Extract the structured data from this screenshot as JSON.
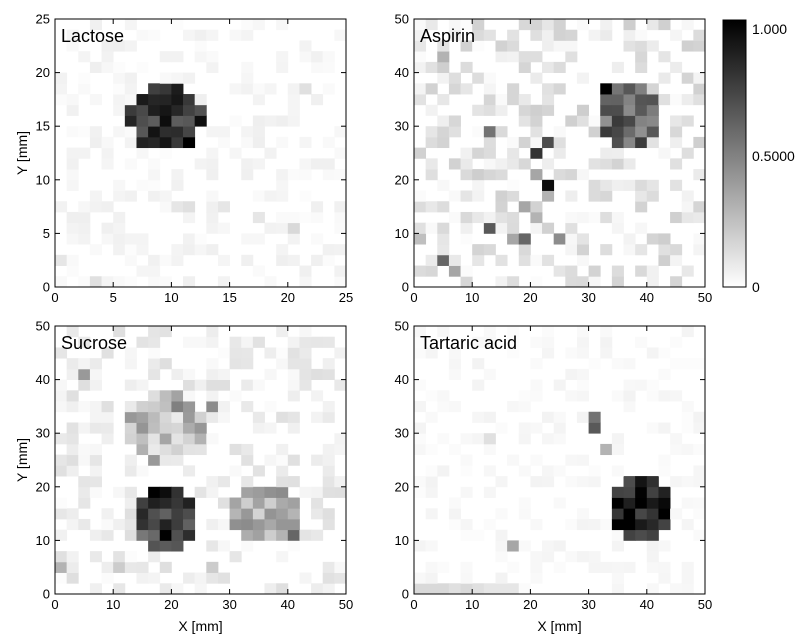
{
  "chart_data": [
    {
      "type": "heatmap",
      "title": "Lactose",
      "xlabel": "",
      "ylabel": "Y [mm]",
      "xlim": [
        0,
        25
      ],
      "ylim": [
        0,
        25
      ],
      "xticks": [
        0,
        5,
        10,
        15,
        20,
        25
      ],
      "yticks": [
        0,
        5,
        10,
        15,
        20,
        25
      ],
      "pixel_mm": 1,
      "background_noise": 0.04,
      "spots": [
        {
          "x": 9.5,
          "y": 15.8,
          "r": 3.2,
          "intensity": 0.78
        }
      ],
      "cells": [
        {
          "x": 11.5,
          "y": 13.5,
          "v": 1.0
        },
        {
          "x": 8.5,
          "y": 17.5,
          "v": 0.85
        },
        {
          "x": 9.5,
          "y": 14.5,
          "v": 0.82
        },
        {
          "x": 0.5,
          "y": 2.5,
          "v": 0.1
        },
        {
          "x": 3.5,
          "y": 0.5,
          "v": 0.12
        },
        {
          "x": 10.5,
          "y": 7.5,
          "v": 0.1
        },
        {
          "x": 11.5,
          "y": 7.5,
          "v": 0.12
        },
        {
          "x": 17.5,
          "y": 6.5,
          "v": 0.1
        },
        {
          "x": 20.5,
          "y": 5.5,
          "v": 0.15
        },
        {
          "x": 21.5,
          "y": 18.5,
          "v": 0.12
        },
        {
          "x": 14.5,
          "y": 7.5,
          "v": 0.1
        }
      ]
    },
    {
      "type": "heatmap",
      "title": "Aspirin",
      "xlabel": "",
      "ylabel": "",
      "xlim": [
        0,
        50
      ],
      "ylim": [
        0,
        50
      ],
      "xticks": [
        0,
        10,
        20,
        30,
        40,
        50
      ],
      "yticks": [
        0,
        10,
        20,
        30,
        40,
        50
      ],
      "pixel_mm": 2,
      "background_noise": 0.12,
      "spots": [
        {
          "x": 37,
          "y": 32,
          "r": 6,
          "intensity": 0.6
        }
      ],
      "cells": [
        {
          "x": 33,
          "y": 37,
          "v": 1.0
        },
        {
          "x": 23,
          "y": 19,
          "v": 0.95
        },
        {
          "x": 21,
          "y": 25,
          "v": 0.8
        },
        {
          "x": 23,
          "y": 27,
          "v": 0.7
        },
        {
          "x": 13,
          "y": 11,
          "v": 0.65
        },
        {
          "x": 5,
          "y": 5,
          "v": 0.6
        },
        {
          "x": 13,
          "y": 29,
          "v": 0.55
        },
        {
          "x": 19,
          "y": 9,
          "v": 0.6
        },
        {
          "x": 25,
          "y": 9,
          "v": 0.45
        },
        {
          "x": 5,
          "y": 43,
          "v": 0.3
        },
        {
          "x": 21,
          "y": 21,
          "v": 0.35
        },
        {
          "x": 19,
          "y": 15,
          "v": 0.35
        },
        {
          "x": 21,
          "y": 13,
          "v": 0.3
        },
        {
          "x": 17,
          "y": 9,
          "v": 0.35
        },
        {
          "x": 23,
          "y": 17,
          "v": 0.3
        },
        {
          "x": 7,
          "y": 3,
          "v": 0.35
        },
        {
          "x": 1,
          "y": 9,
          "v": 0.25
        }
      ]
    },
    {
      "type": "heatmap",
      "title": "Sucrose",
      "xlabel": "X [mm]",
      "ylabel": "Y [mm]",
      "xlim": [
        0,
        50
      ],
      "ylim": [
        0,
        50
      ],
      "xticks": [
        0,
        10,
        20,
        30,
        40,
        50
      ],
      "yticks": [
        0,
        10,
        20,
        30,
        40,
        50
      ],
      "pixel_mm": 2,
      "background_noise": 0.08,
      "spots": [
        {
          "x": 19,
          "y": 14.5,
          "r": 6,
          "intensity": 0.7
        },
        {
          "x": 19,
          "y": 31,
          "r": 6.5,
          "intensity": 0.25
        },
        {
          "x": 36,
          "y": 15,
          "r": 6,
          "intensity": 0.3
        }
      ],
      "cells": [
        {
          "x": 17,
          "y": 19,
          "v": 1.0
        },
        {
          "x": 19,
          "y": 19,
          "v": 0.95
        },
        {
          "x": 19,
          "y": 11,
          "v": 1.0
        },
        {
          "x": 15,
          "y": 17,
          "v": 0.75
        },
        {
          "x": 23,
          "y": 15,
          "v": 0.7
        },
        {
          "x": 41,
          "y": 11,
          "v": 0.6
        },
        {
          "x": 5,
          "y": 41,
          "v": 0.4
        },
        {
          "x": 21,
          "y": 35,
          "v": 0.5
        },
        {
          "x": 27,
          "y": 35,
          "v": 0.45
        },
        {
          "x": 17,
          "y": 25,
          "v": 0.4
        },
        {
          "x": 39,
          "y": 19,
          "v": 0.45
        },
        {
          "x": 33,
          "y": 13,
          "v": 0.45
        },
        {
          "x": 1,
          "y": 5,
          "v": 0.3
        },
        {
          "x": 27,
          "y": 5,
          "v": 0.2
        },
        {
          "x": 11,
          "y": 5,
          "v": 0.2
        }
      ]
    },
    {
      "type": "heatmap",
      "title": "Tartaric acid",
      "xlabel": "X [mm]",
      "ylabel": "",
      "xlim": [
        0,
        50
      ],
      "ylim": [
        0,
        50
      ],
      "xticks": [
        0,
        10,
        20,
        30,
        40,
        50
      ],
      "yticks": [
        0,
        10,
        20,
        30,
        40,
        50
      ],
      "pixel_mm": 2,
      "background_noise": 0.03,
      "spots": [
        {
          "x": 39,
          "y": 15.5,
          "r": 6,
          "intensity": 0.85
        }
      ],
      "cells": [
        {
          "x": 35,
          "y": 17,
          "v": 1.0
        },
        {
          "x": 37,
          "y": 15,
          "v": 1.0
        },
        {
          "x": 39,
          "y": 17,
          "v": 1.0
        },
        {
          "x": 41,
          "y": 17,
          "v": 0.9
        },
        {
          "x": 31,
          "y": 33,
          "v": 0.55
        },
        {
          "x": 31,
          "y": 31,
          "v": 0.65
        },
        {
          "x": 33,
          "y": 27,
          "v": 0.3
        },
        {
          "x": 17,
          "y": 9,
          "v": 0.35
        },
        {
          "x": 13,
          "y": 29,
          "v": 0.12
        },
        {
          "x": 1,
          "y": 1,
          "v": 0.15
        },
        {
          "x": 3,
          "y": 1,
          "v": 0.15
        },
        {
          "x": 5,
          "y": 1,
          "v": 0.15
        },
        {
          "x": 7,
          "y": 1,
          "v": 0.12
        },
        {
          "x": 9,
          "y": 1,
          "v": 0.15
        },
        {
          "x": 11,
          "y": 1,
          "v": 0.12
        },
        {
          "x": 13,
          "y": 1,
          "v": 0.1
        },
        {
          "x": 15,
          "y": 1,
          "v": 0.1
        },
        {
          "x": 17,
          "y": 1,
          "v": 0.1
        }
      ]
    }
  ],
  "colorbar": {
    "colors": [
      "#ffffff",
      "#000000"
    ],
    "max_label": "1.000",
    "mid_label": "0.5000",
    "min_label": "0",
    "range": [
      0,
      1
    ]
  }
}
